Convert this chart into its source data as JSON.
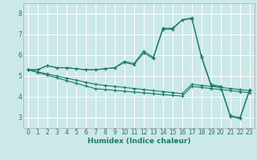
{
  "xlabel": "Humidex (Indice chaleur)",
  "xlim": [
    -0.5,
    23.5
  ],
  "ylim": [
    2.5,
    8.5
  ],
  "yticks": [
    3,
    4,
    5,
    6,
    7,
    8
  ],
  "xticks": [
    0,
    1,
    2,
    3,
    4,
    5,
    6,
    7,
    8,
    9,
    10,
    11,
    12,
    13,
    14,
    15,
    16,
    17,
    18,
    19,
    20,
    21,
    22,
    23
  ],
  "bg_color": "#cce8e8",
  "grid_color": "#ffffff",
  "line_color": "#1a7a6a",
  "lines": [
    [
      5.3,
      5.3,
      5.5,
      5.4,
      5.4,
      5.35,
      5.3,
      5.3,
      5.35,
      5.4,
      5.7,
      5.6,
      6.2,
      5.9,
      7.3,
      7.3,
      7.7,
      7.75,
      5.95,
      4.6,
      4.5,
      3.1,
      3.0,
      4.35
    ],
    [
      5.3,
      5.3,
      5.5,
      5.4,
      5.4,
      5.35,
      5.3,
      5.3,
      5.35,
      5.4,
      5.65,
      5.55,
      6.1,
      5.85,
      7.25,
      7.25,
      7.7,
      7.8,
      5.9,
      4.55,
      4.45,
      3.05,
      2.95,
      4.3
    ],
    [
      5.3,
      5.2,
      5.1,
      5.0,
      4.9,
      4.8,
      4.7,
      4.6,
      4.55,
      4.5,
      4.45,
      4.4,
      4.35,
      4.3,
      4.25,
      4.2,
      4.15,
      4.6,
      4.55,
      4.5,
      4.45,
      4.4,
      4.35,
      4.3
    ],
    [
      5.3,
      5.17,
      5.04,
      4.91,
      4.78,
      4.65,
      4.52,
      4.39,
      4.35,
      4.31,
      4.27,
      4.23,
      4.19,
      4.15,
      4.11,
      4.07,
      4.03,
      4.5,
      4.45,
      4.4,
      4.35,
      4.3,
      4.25,
      4.2
    ]
  ]
}
